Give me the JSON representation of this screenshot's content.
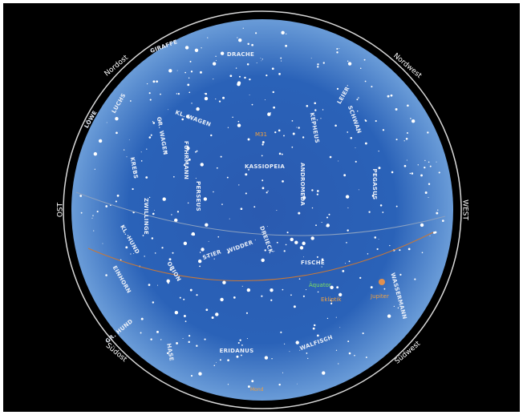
{
  "compass": {
    "northeast": "Nordost",
    "northwest": "Nordwest",
    "east": "OST",
    "west": "WEST",
    "southeast": "Südost",
    "southwest": "Südwest"
  },
  "lines": {
    "ecliptic": "Ekliptik",
    "equator": "Äquator"
  },
  "objects": {
    "planet": "Jupiter",
    "galaxy": "M31",
    "moon": "Mond"
  },
  "constellations": [
    "DRACHE",
    "KL. WAGEN",
    "GR. WAGEN",
    "LUCHS",
    "FUHRMANN",
    "PERSEUS",
    "KASSIOPEIA",
    "KEPHEUS",
    "SCHWAN",
    "LEIER",
    "PEGASUS",
    "ANDROMEDA",
    "FISCHE",
    "WIDDER",
    "DREIECK",
    "STIER",
    "ORION",
    "ZWILLINGE",
    "KREBS",
    "LÖWE",
    "KL. HUND",
    "GR. HUND",
    "EINHORN",
    "HASE",
    "ERIDANUS",
    "WALFISCH",
    "WASSERMANN",
    "GIRAFFE"
  ]
}
